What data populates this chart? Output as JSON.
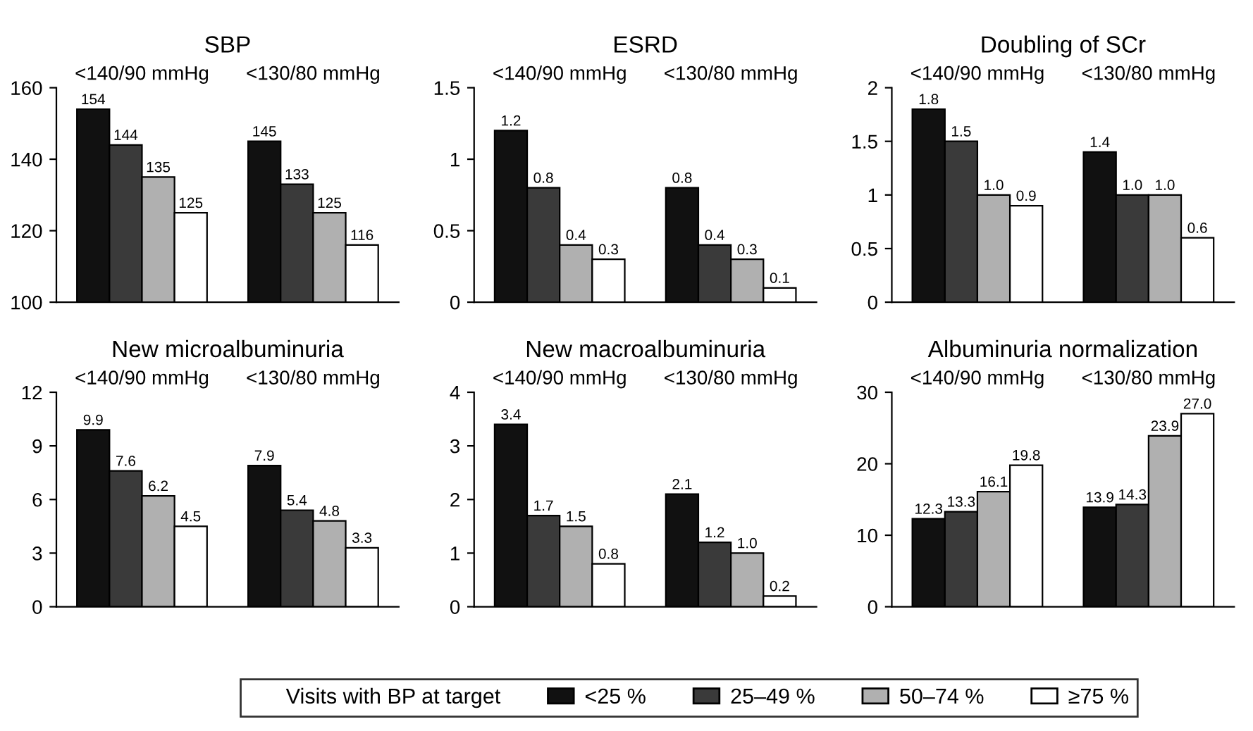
{
  "chart_data": [
    {
      "type": "bar",
      "title": "SBP",
      "categories": [
        "<140/90 mmHg",
        "<130/80 mmHg"
      ],
      "ylim": [
        100,
        160
      ],
      "yticks": [
        100,
        120,
        140,
        160
      ],
      "data_labels": true,
      "legend": "bottom",
      "legend_title": "Visits with BP at target",
      "series": [
        {
          "name": "<25 %",
          "color": "#111111",
          "values": [
            154,
            145
          ]
        },
        {
          "name": "25–49 %",
          "color": "#3a3a3a",
          "values": [
            144,
            133
          ]
        },
        {
          "name": "50–74 %",
          "color": "#b0b0b0",
          "values": [
            135,
            125
          ]
        },
        {
          "name": "≥75 %",
          "color": "#ffffff",
          "values": [
            125,
            116
          ]
        }
      ]
    },
    {
      "type": "bar",
      "title": "ESRD",
      "categories": [
        "<140/90 mmHg",
        "<130/80 mmHg"
      ],
      "ylim": [
        0,
        1.5
      ],
      "yticks": [
        0,
        0.5,
        1,
        1.5
      ],
      "data_labels": true,
      "series": [
        {
          "color": "#111111",
          "values": [
            1.2,
            0.8
          ]
        },
        {
          "color": "#3a3a3a",
          "values": [
            0.8,
            0.4
          ]
        },
        {
          "color": "#b0b0b0",
          "values": [
            0.4,
            0.3
          ]
        },
        {
          "color": "#ffffff",
          "values": [
            0.3,
            0.1
          ]
        }
      ]
    },
    {
      "type": "bar",
      "title": "Doubling of SCr",
      "categories": [
        "<140/90 mmHg",
        "<130/80 mmHg"
      ],
      "ylim": [
        0,
        2
      ],
      "yticks": [
        0,
        0.5,
        1,
        1.5,
        2
      ],
      "series": [
        {
          "color": "#111111",
          "values": [
            1.8,
            1.4
          ],
          "value_labels": [
            "1.8",
            "1.4"
          ]
        },
        {
          "color": "#3a3a3a",
          "values": [
            1.5,
            1
          ],
          "value_labels": [
            "1.5",
            "1.0"
          ]
        },
        {
          "color": "#b0b0b0",
          "values": [
            1,
            1
          ],
          "value_labels": [
            "1.0",
            "1.0"
          ]
        },
        {
          "color": "#ffffff",
          "values": [
            0.9,
            0.6
          ],
          "value_labels": [
            "0.9",
            "0.6"
          ]
        }
      ]
    },
    {
      "type": "bar",
      "title": "New microalbuminuria",
      "categories": [
        "<140/90 mmHg",
        "<130/80 mmHg"
      ],
      "ylim": [
        0,
        12
      ],
      "yticks": [
        0,
        3,
        6,
        9,
        12
      ],
      "data_labels": true,
      "series": [
        {
          "color": "#111111",
          "values": [
            9.9,
            7.9
          ]
        },
        {
          "color": "#3a3a3a",
          "values": [
            7.6,
            5.4
          ]
        },
        {
          "color": "#b0b0b0",
          "values": [
            6.2,
            4.8
          ]
        },
        {
          "color": "#ffffff",
          "values": [
            4.5,
            3.3
          ]
        }
      ]
    },
    {
      "type": "bar",
      "title": "New macroalbuminuria",
      "categories": [
        "<140/90 mmHg",
        "<130/80 mmHg"
      ],
      "ylim": [
        0,
        4
      ],
      "yticks": [
        0,
        1,
        2,
        3,
        4
      ],
      "series": [
        {
          "color": "#111111",
          "values": [
            3.4,
            2.1
          ],
          "value_labels": [
            "3.4",
            "2.1"
          ]
        },
        {
          "color": "#3a3a3a",
          "values": [
            1.7,
            1.2
          ],
          "value_labels": [
            "1.7",
            "1.2"
          ]
        },
        {
          "color": "#b0b0b0",
          "values": [
            1.5,
            1
          ],
          "value_labels": [
            "1.5",
            "1.0"
          ]
        },
        {
          "color": "#ffffff",
          "values": [
            0.8,
            0.2
          ],
          "value_labels": [
            "0.8",
            "0.2"
          ]
        }
      ]
    },
    {
      "type": "bar",
      "title": "Albuminuria normalization",
      "categories": [
        "<140/90 mmHg",
        "<130/80 mmHg"
      ],
      "ylim": [
        0,
        30
      ],
      "yticks": [
        0,
        10,
        20,
        30
      ],
      "series": [
        {
          "color": "#111111",
          "values": [
            12.3,
            13.9
          ],
          "value_labels": [
            "12.3",
            "13.9"
          ]
        },
        {
          "color": "#3a3a3a",
          "values": [
            13.3,
            14.3
          ],
          "value_labels": [
            "13.3",
            "14.3"
          ]
        },
        {
          "color": "#b0b0b0",
          "values": [
            16.1,
            23.9
          ],
          "value_labels": [
            "16.1",
            "23.9"
          ]
        },
        {
          "color": "#ffffff",
          "values": [
            19.8,
            27
          ],
          "value_labels": [
            "19.8",
            "27.0"
          ]
        }
      ]
    }
  ]
}
